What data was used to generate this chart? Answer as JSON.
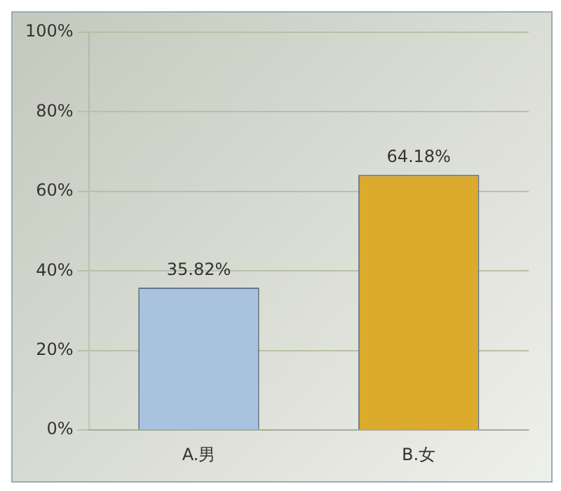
{
  "chart_data": {
    "type": "bar",
    "categories": [
      "A.男",
      "B.女"
    ],
    "series": [
      {
        "colors": [
          "#a9c3df",
          "#dcaa2c"
        ],
        "values": [
          35.82,
          64.18
        ]
      }
    ],
    "value_labels": [
      "35.82%",
      "64.18%"
    ],
    "ylim": [
      0,
      100
    ],
    "yticks": [
      {
        "value": 0,
        "label": "0%"
      },
      {
        "value": 20,
        "label": "20%"
      },
      {
        "value": 40,
        "label": "40%"
      },
      {
        "value": 60,
        "label": "60%"
      },
      {
        "value": 80,
        "label": "80%"
      },
      {
        "value": 100,
        "label": "100%"
      }
    ],
    "grid": "y",
    "legend": false
  }
}
